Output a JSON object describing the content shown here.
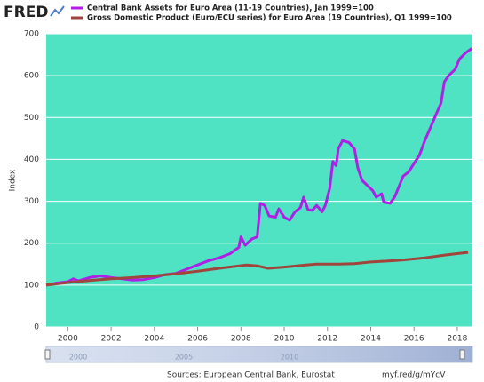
{
  "chart_data": {
    "type": "line",
    "logo": "FRED",
    "ylabel": "Index",
    "xlim": [
      1999,
      2018.7
    ],
    "xticks": [
      2000,
      2002,
      2004,
      2006,
      2008,
      2010,
      2012,
      2014,
      2016,
      2018
    ],
    "ylim": [
      0,
      700
    ],
    "yticks": [
      0,
      100,
      200,
      300,
      400,
      500,
      600,
      700
    ],
    "grid": true,
    "background": "#4fe3c3",
    "series": [
      {
        "name": "Central Bank Assets for Euro Area (11-19 Countries), Jan 1999=100",
        "color": "#b01fe6",
        "x": [
          1999.0,
          1999.5,
          2000.0,
          2000.25,
          2000.5,
          2001.0,
          2001.5,
          2002.0,
          2002.5,
          2003.0,
          2003.5,
          2004.0,
          2004.5,
          2005.0,
          2005.5,
          2006.0,
          2006.5,
          2007.0,
          2007.5,
          2007.9,
          2008.0,
          2008.2,
          2008.5,
          2008.75,
          2008.9,
          2009.1,
          2009.3,
          2009.6,
          2009.75,
          2010.0,
          2010.25,
          2010.5,
          2010.75,
          2010.9,
          2011.1,
          2011.3,
          2011.5,
          2011.75,
          2011.9,
          2012.1,
          2012.25,
          2012.4,
          2012.5,
          2012.7,
          2013.0,
          2013.25,
          2013.4,
          2013.6,
          2013.9,
          2014.1,
          2014.25,
          2014.5,
          2014.6,
          2014.9,
          2015.1,
          2015.3,
          2015.5,
          2015.75,
          2016.0,
          2016.25,
          2016.5,
          2016.75,
          2017.0,
          2017.25,
          2017.4,
          2017.6,
          2017.9,
          2018.1,
          2018.4,
          2018.67
        ],
        "values": [
          100,
          105,
          108,
          115,
          110,
          118,
          122,
          118,
          115,
          112,
          113,
          118,
          125,
          128,
          138,
          148,
          158,
          165,
          175,
          190,
          215,
          195,
          210,
          215,
          295,
          290,
          265,
          262,
          282,
          262,
          255,
          275,
          285,
          310,
          280,
          278,
          290,
          275,
          290,
          330,
          395,
          385,
          425,
          445,
          440,
          425,
          380,
          350,
          335,
          325,
          310,
          318,
          298,
          295,
          310,
          335,
          360,
          370,
          390,
          410,
          445,
          475,
          505,
          535,
          585,
          600,
          615,
          640,
          655,
          665
        ]
      },
      {
        "name": "Gross Domestic Product (Euro/ECU series) for Euro Area (19 Countries), Q1 1999=100",
        "color": "#a0443c",
        "x": [
          1999.0,
          2000.0,
          2001.0,
          2002.0,
          2003.0,
          2004.0,
          2005.0,
          2006.0,
          2007.0,
          2008.25,
          2008.75,
          2009.25,
          2010.0,
          2011.0,
          2011.5,
          2012.5,
          2013.25,
          2014.0,
          2015.0,
          2015.5,
          2016.5,
          2017.5,
          2018.5
        ],
        "values": [
          100,
          106,
          111,
          115,
          118,
          122,
          127,
          133,
          140,
          148,
          146,
          140,
          143,
          148,
          150,
          150,
          151,
          155,
          158,
          160,
          165,
          172,
          178
        ]
      }
    ],
    "navigator": {
      "labels": [
        "2000",
        "2005",
        "2010"
      ]
    },
    "source": "Sources: European Central Bank, Eurostat",
    "link": "myf.red/g/mYcV"
  }
}
